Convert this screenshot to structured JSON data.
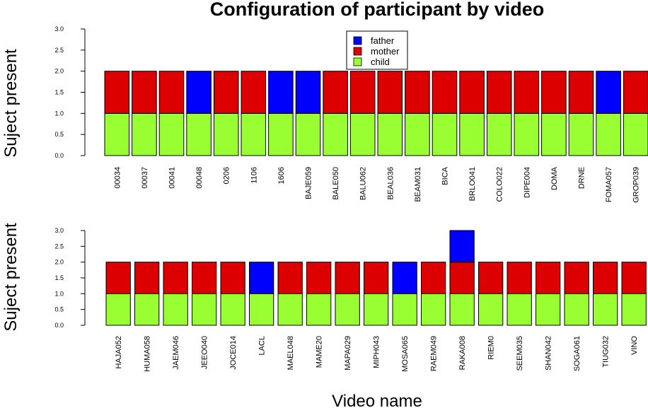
{
  "chart_data": [
    {
      "type": "bar",
      "stacked": true,
      "title": "Configuration of participant by video",
      "ylabel": "Suject present",
      "xlabel": "",
      "ylim": [
        0,
        3
      ],
      "yticks": [
        "0.0",
        "0.5",
        "1.0",
        "1.5",
        "2.0",
        "2.5",
        "3.0"
      ],
      "grid": false,
      "legend_position": "top-center",
      "categories": [
        "00034",
        "00037",
        "00041",
        "00048",
        "0206",
        "1106",
        "1606",
        "BAJE059",
        "BALE050",
        "BALU062",
        "BEAL036",
        "BEAM031",
        "BICA",
        "BRLO041",
        "COLO022",
        "DIPE004",
        "DOMA",
        "DRNE",
        "FOMA057",
        "GROP039"
      ],
      "series": [
        {
          "name": "child",
          "color": "#99ff33",
          "values": [
            1,
            1,
            1,
            1,
            1,
            1,
            1,
            1,
            1,
            1,
            1,
            1,
            1,
            1,
            1,
            1,
            1,
            1,
            1,
            1
          ]
        },
        {
          "name": "mother",
          "color": "#dd0000",
          "values": [
            1,
            1,
            1,
            0,
            1,
            1,
            0,
            0,
            1,
            1,
            1,
            1,
            1,
            1,
            1,
            1,
            1,
            1,
            0,
            1
          ]
        },
        {
          "name": "father",
          "color": "#0000ff",
          "values": [
            0,
            0,
            0,
            1,
            0,
            0,
            1,
            1,
            0,
            0,
            0,
            0,
            0,
            0,
            0,
            0,
            0,
            0,
            1,
            0
          ]
        }
      ]
    },
    {
      "type": "bar",
      "stacked": true,
      "title": "",
      "ylabel": "Suject present",
      "xlabel": "Video name",
      "ylim": [
        0,
        3
      ],
      "yticks": [
        "0.0",
        "0.5",
        "1.0",
        "1.5",
        "2.0",
        "2.5",
        "3.0"
      ],
      "grid": false,
      "categories": [
        "HAJA052",
        "HUMA058",
        "JAEM046",
        "JEEO040",
        "JOCE014",
        "LACL",
        "MAEL048",
        "MAME20",
        "MAPA029",
        "MIPH043",
        "MOSA065",
        "RAEM049",
        "RAKA008",
        "RIEM0",
        "SEEM035",
        "SHAN042",
        "SOGA061",
        "TIUG032",
        "VINO"
      ],
      "series": [
        {
          "name": "child",
          "color": "#99ff33",
          "values": [
            1,
            1,
            1,
            1,
            1,
            1,
            1,
            1,
            1,
            1,
            1,
            1,
            1,
            1,
            1,
            1,
            1,
            1,
            1
          ]
        },
        {
          "name": "mother",
          "color": "#dd0000",
          "values": [
            1,
            1,
            1,
            1,
            1,
            0,
            1,
            1,
            1,
            1,
            0,
            1,
            1,
            1,
            1,
            1,
            1,
            1,
            1
          ]
        },
        {
          "name": "father",
          "color": "#0000ff",
          "values": [
            0,
            0,
            0,
            0,
            0,
            1,
            0,
            0,
            0,
            0,
            1,
            0,
            1,
            0,
            0,
            0,
            0,
            0,
            0
          ]
        }
      ]
    }
  ],
  "legend": {
    "items": [
      {
        "label": "father",
        "color": "#0000ff"
      },
      {
        "label": "mother",
        "color": "#dd0000"
      },
      {
        "label": "child",
        "color": "#99ff33"
      }
    ]
  }
}
